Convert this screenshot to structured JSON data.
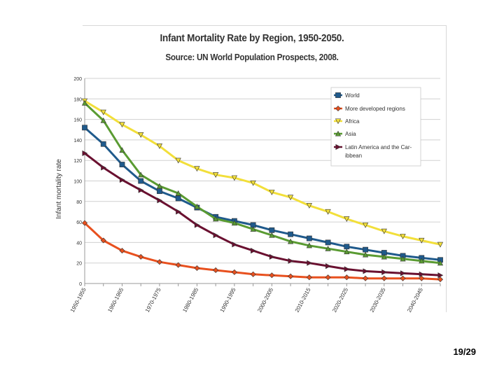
{
  "page": {
    "page_number": "19/29"
  },
  "chart_data": {
    "type": "line",
    "title": "Infant Mortality Rate by Region, 1950-2050.",
    "subtitle": "Source: UN World Population Prospects, 2008.",
    "xlabel": "",
    "ylabel": "Infant mortality rate",
    "ylim": [
      0,
      200
    ],
    "yticks": [
      0,
      20,
      40,
      60,
      80,
      100,
      120,
      140,
      160,
      180,
      200
    ],
    "grid": true,
    "legend_position": "top-right",
    "x": [
      "1950-1955",
      "1955-1960",
      "1960-1965",
      "1965-1970",
      "1970-1975",
      "1975-1980",
      "1980-1985",
      "1985-1990",
      "1990-1995",
      "1995-2000",
      "2000-2005",
      "2005-2010",
      "2010-2015",
      "2015-2020",
      "2020-2025",
      "2025-2030",
      "2030-2035",
      "2035-2040",
      "2040-2045",
      "2045-2050"
    ],
    "x_tick_labels": [
      "1950-1955",
      "",
      "1960-1965",
      "",
      "1970-1975",
      "",
      "1980-1985",
      "",
      "1990-1995",
      "",
      "2000-2005",
      "",
      "2010-2015",
      "",
      "2020-2025",
      "",
      "2030-2035",
      "",
      "2040-2045",
      ""
    ],
    "series": [
      {
        "name": "World",
        "color": "#1f5a8c",
        "marker": "square",
        "values": [
          152,
          136,
          116,
          100,
          90,
          83,
          74,
          65,
          61,
          57,
          52,
          48,
          44,
          40,
          36,
          33,
          30,
          27,
          25,
          23
        ]
      },
      {
        "name": "More developed regions",
        "color": "#e8501e",
        "marker": "diamond",
        "values": [
          59,
          42,
          32,
          26,
          21,
          18,
          15,
          13,
          11,
          9,
          8,
          7,
          6,
          6,
          6,
          5,
          5,
          5,
          5,
          4
        ]
      },
      {
        "name": "Africa",
        "color": "#f2df3a",
        "marker": "triangle-down",
        "values": [
          178,
          167,
          155,
          145,
          134,
          120,
          112,
          106,
          103,
          98,
          89,
          84,
          76,
          70,
          63,
          57,
          51,
          46,
          42,
          38
        ]
      },
      {
        "name": "Asia",
        "color": "#5a9b32",
        "marker": "triangle-up",
        "values": [
          176,
          159,
          130,
          106,
          95,
          88,
          75,
          63,
          59,
          53,
          47,
          41,
          37,
          34,
          31,
          28,
          26,
          24,
          22,
          20
        ]
      },
      {
        "name": "Latin America and the Caribbean",
        "color": "#6a1030",
        "marker": "triangle-right",
        "values": [
          127,
          113,
          101,
          91,
          81,
          70,
          57,
          47,
          38,
          32,
          26,
          22,
          20,
          17,
          14,
          12,
          11,
          10,
          9,
          8
        ]
      }
    ]
  }
}
